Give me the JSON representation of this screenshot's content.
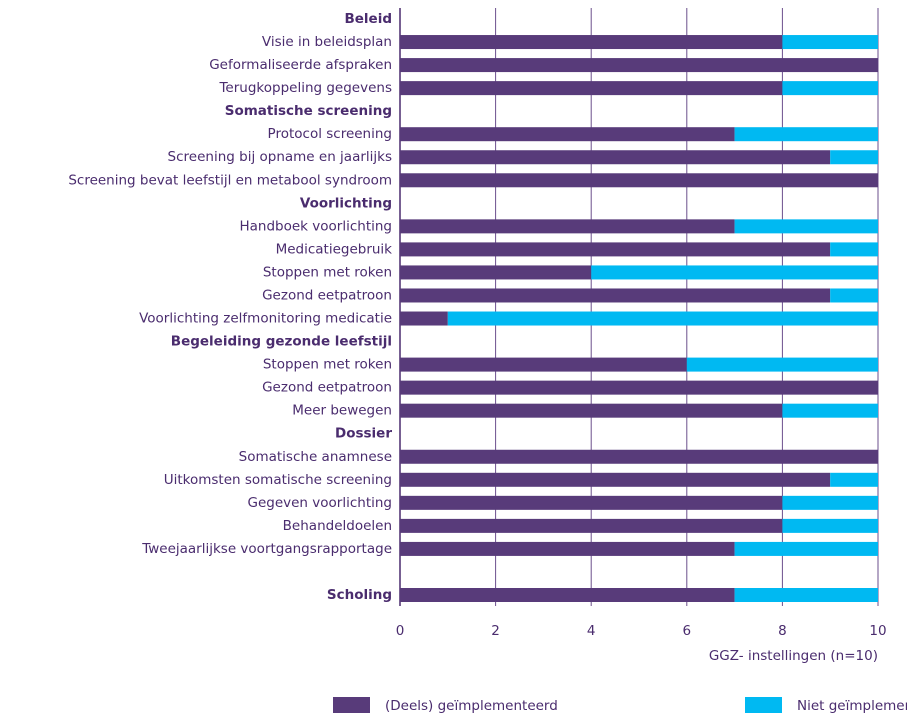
{
  "chart_data": {
    "type": "stacked-barh",
    "x_label": "GGZ- instellingen (n=10)",
    "categories": [
      "Beleid",
      "Visie in beleidsplan",
      "Geformaliseerde afspraken",
      "Terugkoppeling gegevens",
      "Somatische screening",
      "Protocol screening",
      "Screening bij opname en jaarlijks",
      "Screening bevat leefstijl en metabool syndroom",
      "Voorlichting",
      "Handboek voorlichting",
      "Medicatiegebruik",
      "Stoppen met roken",
      "Gezond eetpatroon",
      "Voorlichting zelfmonitoring medicatie",
      "Begeleiding gezonde leefstijl",
      "Stoppen met roken",
      "Gezond eetpatroon",
      "Meer bewegen",
      "Dossier",
      "Somatische anamnese",
      "Uitkomsten somatische screening",
      "Gegeven voorlichting",
      "Behandeldoelen",
      "Tweejaarlijkse voortgangsrapportage",
      null,
      "Scholing"
    ],
    "bold": [
      true,
      false,
      false,
      false,
      true,
      false,
      false,
      false,
      true,
      false,
      false,
      false,
      false,
      false,
      true,
      false,
      false,
      false,
      true,
      false,
      false,
      false,
      false,
      false,
      false,
      true
    ],
    "series": [
      {
        "name": "(Deels) geïmplementeerd",
        "color": "#583b7a",
        "values": [
          null,
          8,
          10,
          8,
          null,
          7,
          9,
          10,
          null,
          7,
          9,
          4,
          9,
          1,
          null,
          6,
          10,
          8,
          null,
          10,
          9,
          8,
          8,
          7,
          null,
          7
        ]
      },
      {
        "name": "Niet geïmplementeerd",
        "color": "#00b9f2",
        "values": [
          null,
          2,
          0,
          2,
          null,
          3,
          1,
          0,
          null,
          3,
          1,
          6,
          1,
          9,
          null,
          4,
          0,
          2,
          null,
          0,
          1,
          2,
          2,
          3,
          null,
          3
        ]
      }
    ],
    "xlim": [
      0,
      10
    ],
    "xticks": [
      0,
      2,
      4,
      6,
      8,
      10
    ],
    "grid": true
  }
}
